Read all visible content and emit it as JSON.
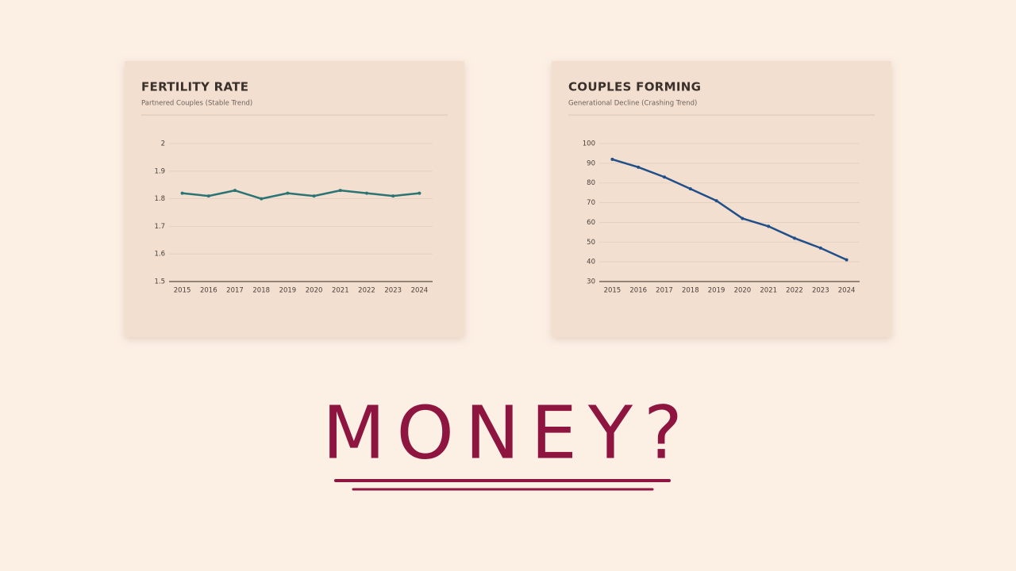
{
  "chart_data": [
    {
      "type": "line",
      "title": "FERTILITY RATE",
      "subtitle": "Partnered Couples (Stable Trend)",
      "categories": [
        "2015",
        "2016",
        "2017",
        "2018",
        "2019",
        "2020",
        "2021",
        "2022",
        "2023",
        "2024"
      ],
      "values": [
        1.82,
        1.81,
        1.83,
        1.8,
        1.82,
        1.81,
        1.83,
        1.82,
        1.81,
        1.82
      ],
      "color": "#2b7474",
      "ylim": [
        1.5,
        2
      ],
      "yticks": [
        1.5,
        1.6,
        1.7,
        1.8,
        1.9,
        2
      ],
      "grid": true
    },
    {
      "type": "line",
      "title": "COUPLES FORMING",
      "subtitle": "Generational Decline (Crashing Trend)",
      "categories": [
        "2015",
        "2016",
        "2017",
        "2018",
        "2019",
        "2020",
        "2021",
        "2022",
        "2023",
        "2024"
      ],
      "values": [
        92,
        88,
        83,
        77,
        71,
        62,
        58,
        52,
        47,
        41
      ],
      "color": "#214f8a",
      "ylim": [
        30,
        100
      ],
      "yticks": [
        30,
        40,
        50,
        60,
        70,
        80,
        90,
        100
      ],
      "grid": true
    }
  ],
  "headline": "MONEY?"
}
